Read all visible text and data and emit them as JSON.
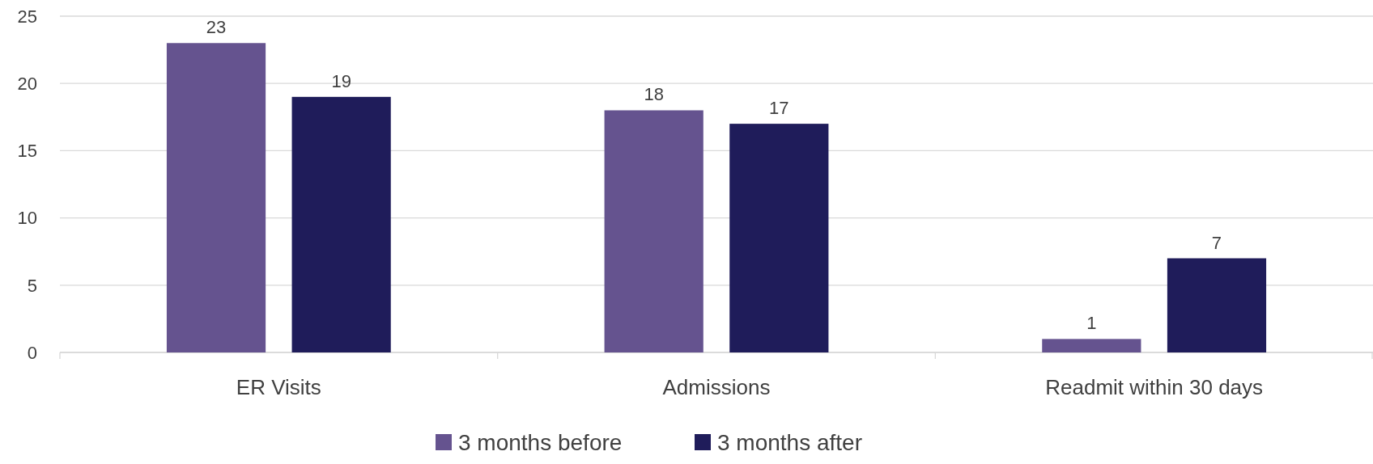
{
  "chart_data": {
    "type": "bar",
    "categories": [
      "ER Visits",
      "Admissions",
      "Readmit within 30 days"
    ],
    "series": [
      {
        "name": "3 months before",
        "color": "#65538f",
        "values": [
          23,
          18,
          1
        ]
      },
      {
        "name": "3 months after",
        "color": "#1f1c5a",
        "values": [
          19,
          17,
          7
        ]
      }
    ],
    "ylim": [
      0,
      25
    ],
    "yticks": [
      0,
      5,
      10,
      15,
      20,
      25
    ],
    "grid": "y",
    "legend": "bottom",
    "data_labels": true
  }
}
